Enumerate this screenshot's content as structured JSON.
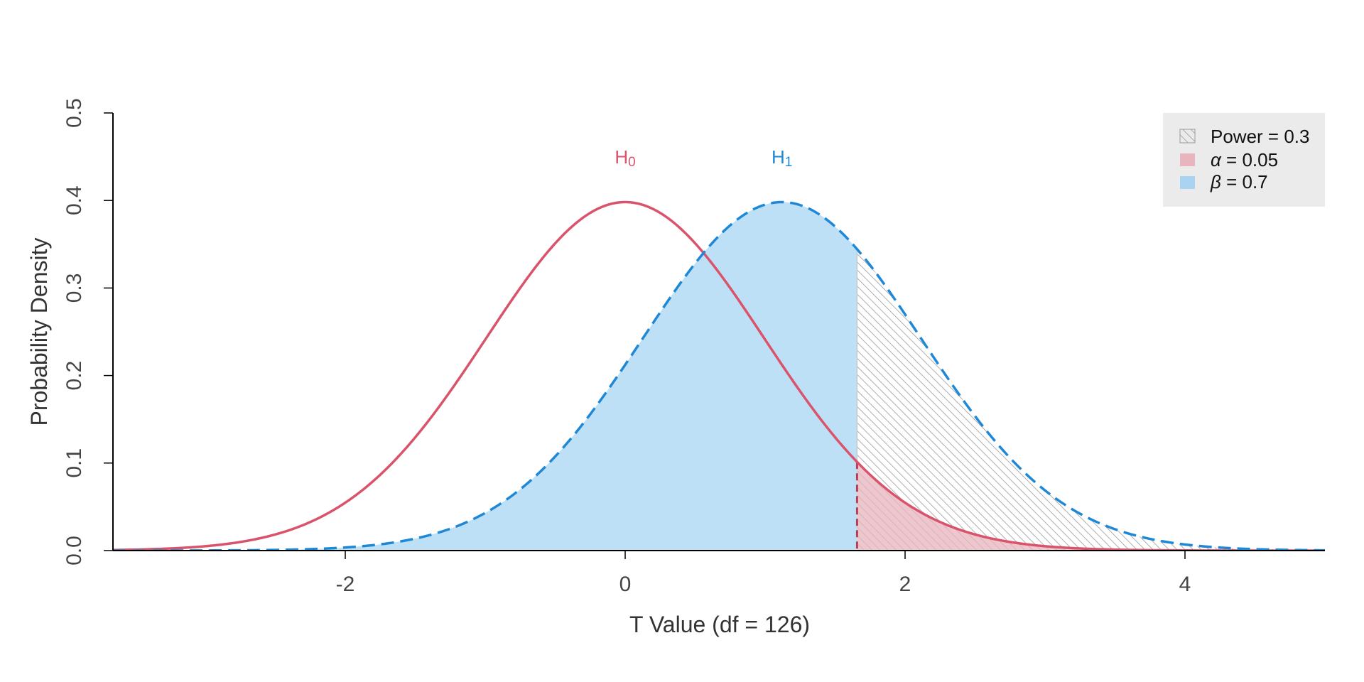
{
  "chart_data": {
    "type": "line",
    "xlabel": "T Value (df = 126)",
    "ylabel": "Probability Density",
    "xlim": [
      -3.66,
      5.0
    ],
    "ylim": [
      0,
      0.5
    ],
    "x_ticks": [
      -2,
      0,
      2,
      4
    ],
    "x_tick_labels": [
      "-2",
      "0",
      "2",
      "4"
    ],
    "y_ticks": [
      0.0,
      0.1,
      0.2,
      0.3,
      0.4,
      0.5
    ],
    "y_tick_labels": [
      "0.0",
      "0.1",
      "0.2",
      "0.3",
      "0.4",
      "0.5"
    ],
    "df": 126,
    "critical_value": 1.657,
    "series": [
      {
        "name": "H0",
        "center": 0,
        "peak_density": 0.398,
        "color": "#d9536b",
        "line_style": "solid",
        "label_main": "H",
        "label_sub": "0"
      },
      {
        "name": "H1",
        "center": 1.12,
        "peak_density": 0.398,
        "color": "#1e88d6",
        "line_style": "dashed",
        "label_main": "H",
        "label_sub": "1"
      }
    ],
    "regions": [
      {
        "key": "power",
        "label": "Power = 0.3",
        "from": 1.657,
        "to": 5.0,
        "under": "H1",
        "fill": "hatched",
        "color": "#9a9a9a"
      },
      {
        "key": "alpha",
        "label": "α = 0.05",
        "from": 1.657,
        "to": 5.0,
        "under": "H0",
        "fill": "#e8b4bd"
      },
      {
        "key": "beta",
        "label": "β = 0.7",
        "from": -3.66,
        "to": 1.657,
        "under": "H1",
        "fill": "#bde0f6"
      }
    ],
    "legend": {
      "position": "top-right",
      "background": "#ebebeb",
      "items": [
        {
          "key": "power",
          "symbol": "",
          "text": "Power = 0.3"
        },
        {
          "key": "alpha",
          "symbol": "α",
          "text": " = 0.05"
        },
        {
          "key": "beta",
          "symbol": "β",
          "text": " = 0.7"
        }
      ]
    }
  }
}
